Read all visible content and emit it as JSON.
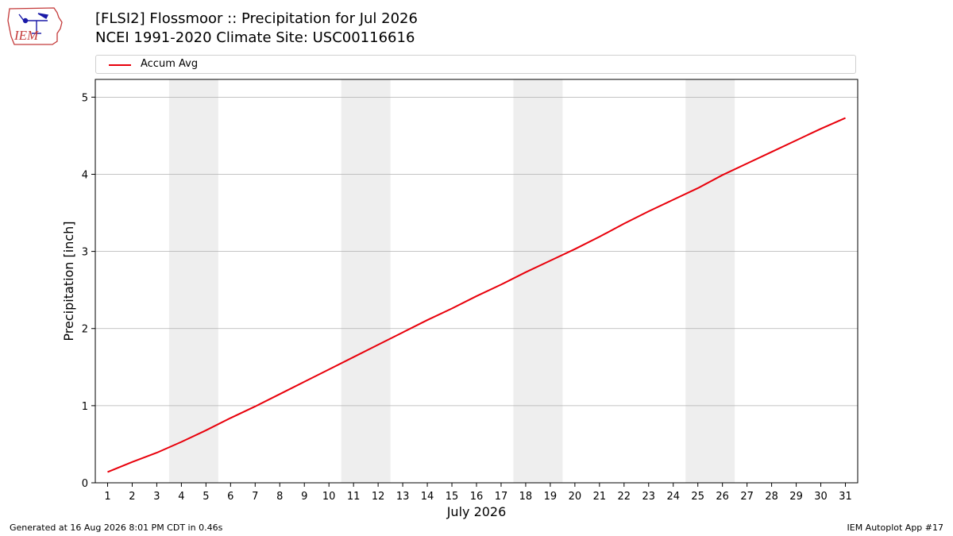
{
  "header": {
    "title_line1": "[FLSI2] Flossmoor :: Precipitation for Jul 2026",
    "title_line2": "NCEI 1991-2020 Climate Site: USC00116616"
  },
  "logo": {
    "text": "IEM",
    "icon": "iem-iowa-logo-icon"
  },
  "footer": {
    "left": "Generated at 16 Aug 2026 8:01 PM CDT in 0.46s",
    "right": "IEM Autoplot App #17"
  },
  "chart_data": {
    "type": "line",
    "xlabel": "July 2026",
    "ylabel": "Precipitation [inch]",
    "xlim": [
      0.5,
      31.5
    ],
    "ylim": [
      0,
      5.23
    ],
    "yticks": [
      0,
      1,
      2,
      3,
      4,
      5
    ],
    "x": [
      1,
      2,
      3,
      4,
      5,
      6,
      7,
      8,
      9,
      10,
      11,
      12,
      13,
      14,
      15,
      16,
      17,
      18,
      19,
      20,
      21,
      22,
      23,
      24,
      25,
      26,
      27,
      28,
      29,
      30,
      31
    ],
    "series": [
      {
        "name": "Accum Avg",
        "color": "#e8000b",
        "values": [
          0.14,
          0.27,
          0.39,
          0.53,
          0.68,
          0.84,
          0.99,
          1.15,
          1.31,
          1.47,
          1.63,
          1.79,
          1.95,
          2.11,
          2.26,
          2.42,
          2.57,
          2.73,
          2.88,
          3.03,
          3.19,
          3.36,
          3.52,
          3.67,
          3.82,
          3.99,
          4.14,
          4.29,
          4.44,
          4.59,
          4.73
        ]
      }
    ],
    "weekend_shading": [
      [
        3.5,
        5.5
      ],
      [
        10.5,
        12.5
      ],
      [
        17.5,
        19.5
      ],
      [
        24.5,
        26.5
      ]
    ],
    "shading_color": "#eeeeee",
    "grid": "y-major",
    "legend": "top"
  }
}
